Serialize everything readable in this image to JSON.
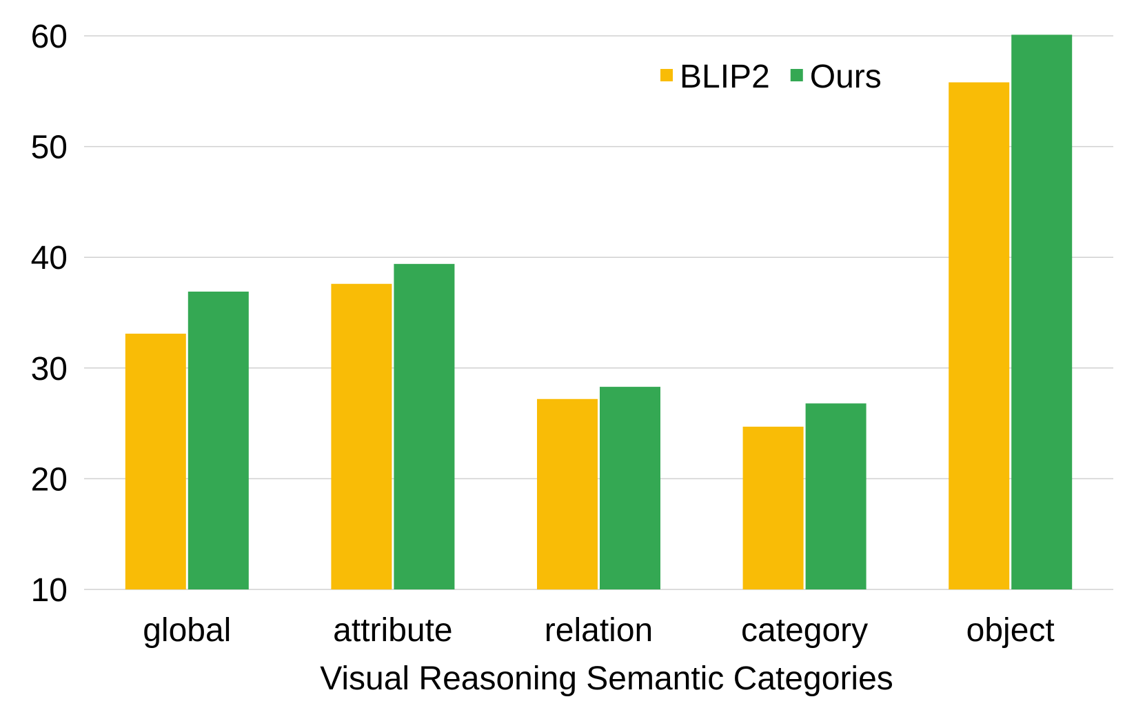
{
  "chart_data": {
    "type": "bar",
    "xlabel": "Visual Reasoning Semantic Categories",
    "ylabel": "",
    "ylim": [
      10,
      60
    ],
    "yticks": [
      10,
      20,
      30,
      40,
      50,
      60
    ],
    "grid": true,
    "legend_position": "top-right",
    "categories": [
      "global",
      "attribute",
      "relation",
      "category",
      "object"
    ],
    "series": [
      {
        "name": "BLIP2",
        "color": "#F9BC06",
        "values": [
          33.1,
          37.6,
          27.2,
          24.7,
          55.8
        ]
      },
      {
        "name": "Ours",
        "color": "#34A853",
        "values": [
          36.9,
          39.4,
          28.3,
          26.8,
          60.1
        ]
      }
    ]
  }
}
